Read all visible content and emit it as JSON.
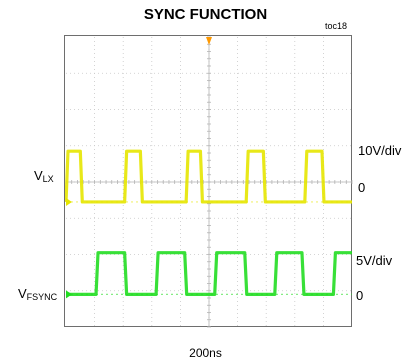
{
  "title": "SYNC FUNCTION",
  "figure_id": "toc18",
  "timebase": "200ns",
  "channels": [
    {
      "name": "V",
      "sub": "LX",
      "scale": "10V/div",
      "ref": "0",
      "color": "#e6e600"
    },
    {
      "name": "V",
      "sub": "FSYNC",
      "scale": "5V/div",
      "ref": "0",
      "color": "#22dd22"
    }
  ],
  "chart_data": {
    "type": "line",
    "title": "SYNC FUNCTION",
    "xlabel": "",
    "ylabel": "",
    "x_unit_per_div": "200ns",
    "x_divisions": 10,
    "y_divisions": 8,
    "grid": true,
    "series": [
      {
        "name": "VLX",
        "volts_per_div": 10,
        "ground_div": 4.55,
        "low_div": 0,
        "high_div": 1.4,
        "transitions_div": [
          -0.1,
          0.5,
          2.05,
          2.6,
          4.2,
          4.7,
          6.3,
          6.9,
          8.35,
          8.95
        ]
      },
      {
        "name": "VFSYNC",
        "volts_per_div": 5,
        "ground_div": 7.1,
        "low_div": 0,
        "high_div": 1.15,
        "transitions_div": [
          1.05,
          2.05,
          3.15,
          4.15,
          5.2,
          6.25,
          7.3,
          8.25,
          9.35
        ]
      }
    ]
  }
}
